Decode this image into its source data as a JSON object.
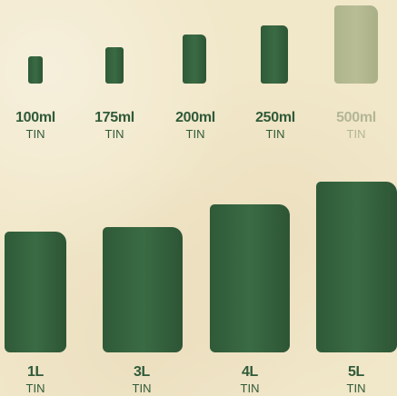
{
  "row1": [
    {
      "size": "100ml",
      "kind": "TIN"
    },
    {
      "size": "175ml",
      "kind": "TIN"
    },
    {
      "size": "200ml",
      "kind": "TIN"
    },
    {
      "size": "250ml",
      "kind": "TIN"
    },
    {
      "size": "500ml",
      "kind": "TIN"
    }
  ],
  "row2": [
    {
      "size": "1L",
      "kind": "TIN"
    },
    {
      "size": "3L",
      "kind": "TIN"
    },
    {
      "size": "4L",
      "kind": "TIN"
    },
    {
      "size": "5L",
      "kind": "TIN"
    }
  ],
  "colors": {
    "tin": "#3a6b44",
    "faded": "#b2b694",
    "background": "#f1e7c9"
  }
}
